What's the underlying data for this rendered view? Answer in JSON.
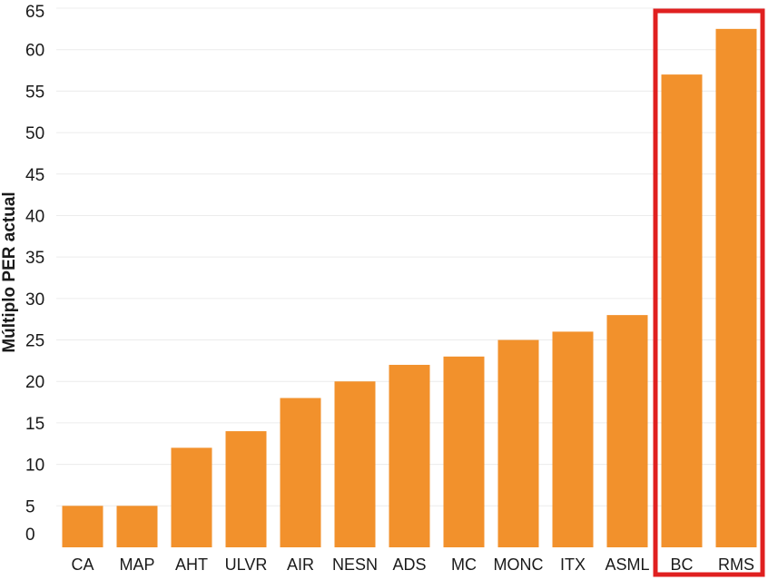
{
  "chart_data": {
    "type": "bar",
    "title": "",
    "xlabel": "",
    "ylabel": "Múltiplo PER actual",
    "ylim": [
      0,
      65
    ],
    "yticks": [
      0,
      5,
      10,
      15,
      20,
      25,
      30,
      35,
      40,
      45,
      50,
      55,
      60,
      65
    ],
    "grid": true,
    "categories": [
      "CA",
      "MAP",
      "AHT",
      "ULVR",
      "AIR",
      "NESN",
      "ADS",
      "MC",
      "MONC",
      "ITX",
      "ASML",
      "BC",
      "RMS"
    ],
    "values": [
      5,
      5,
      12,
      14,
      18,
      20,
      22,
      23,
      25,
      26,
      28,
      57,
      62.5
    ],
    "highlight": [
      "BC",
      "RMS"
    ],
    "colors": {
      "bar": "#F2912C",
      "highlight_box": "#E02020",
      "grid": "#ececec"
    }
  }
}
